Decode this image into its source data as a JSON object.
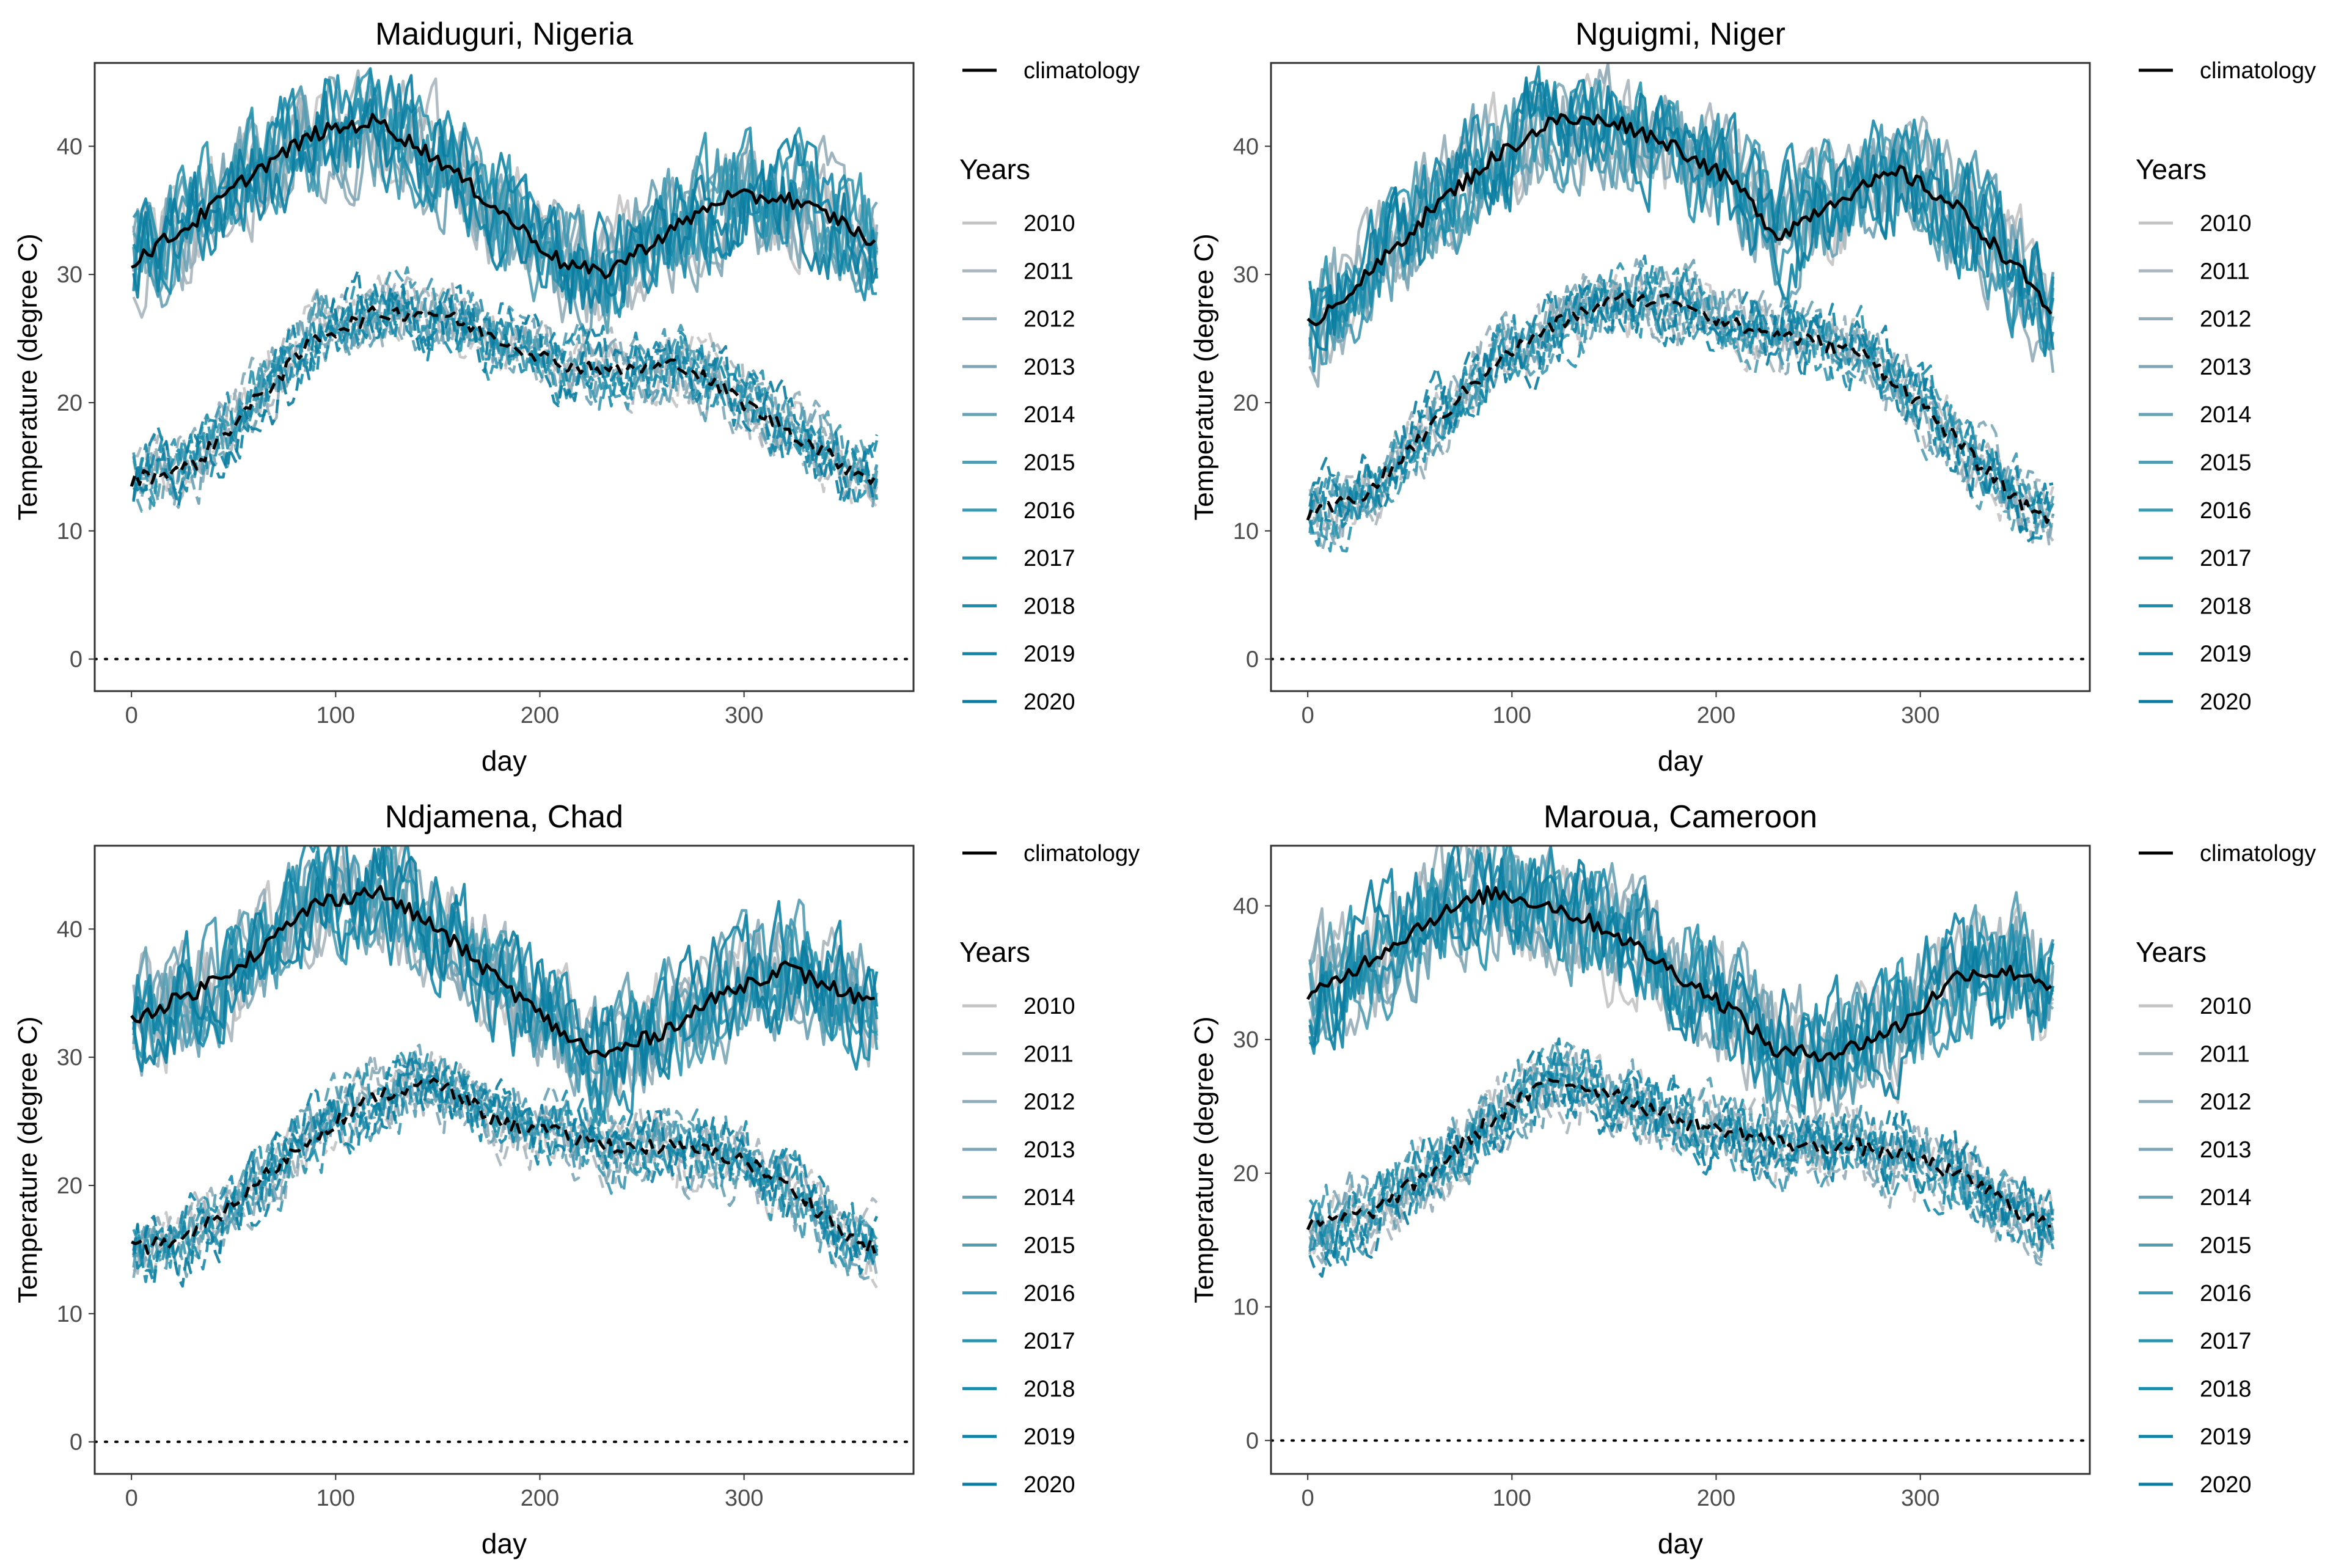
{
  "figure": {
    "legend_climatology_label": "climatology",
    "legend_years_title": "Years",
    "years": [
      "2010",
      "2011",
      "2012",
      "2013",
      "2014",
      "2015",
      "2016",
      "2017",
      "2018",
      "2019",
      "2020"
    ],
    "year_colors": [
      "#c4c4c4",
      "#a8b6bd",
      "#93adb8",
      "#7ea6b6",
      "#69a1b4",
      "#539db3",
      "#3e98b1",
      "#2993ae",
      "#1a8bab",
      "#0f84a6",
      "#0a7ca0"
    ],
    "climatology_color": "#000000",
    "zero_line_style": "dotted"
  },
  "chart_data": [
    {
      "type": "line",
      "title": "Maiduguri, Nigeria",
      "xlabel": "day",
      "ylabel": "Temperature (degree C)",
      "xlim": [
        -18,
        383
      ],
      "ylim": [
        -2.5,
        46.5
      ],
      "x_ticks": [
        0,
        100,
        200,
        300
      ],
      "y_ticks": [
        0,
        10,
        20,
        30,
        40
      ],
      "grid": false,
      "legend_position": "right",
      "series": [
        {
          "name": "climatology",
          "style": "solid",
          "x": [
            0,
            30,
            60,
            90,
            120,
            150,
            180,
            210,
            230,
            260,
            290,
            320,
            350,
            365
          ],
          "y": [
            31,
            34,
            38,
            41,
            42,
            39,
            35,
            31,
            30,
            33,
            36,
            36,
            34,
            32
          ]
        },
        {
          "name": "climatology",
          "style": "dashed",
          "x": [
            0,
            30,
            60,
            90,
            120,
            150,
            180,
            210,
            240,
            270,
            300,
            330,
            350,
            365
          ],
          "y": [
            14,
            15,
            20,
            25,
            27,
            27,
            25,
            23,
            22.5,
            23,
            20,
            17,
            15,
            14
          ]
        }
      ],
      "zero_line": 0
    },
    {
      "type": "line",
      "title": "Nguigmi, Niger",
      "xlabel": "day",
      "ylabel": "Temperature (degree C)",
      "xlim": [
        -18,
        383
      ],
      "ylim": [
        -2.5,
        46.5
      ],
      "x_ticks": [
        0,
        100,
        200,
        300
      ],
      "y_ticks": [
        0,
        10,
        20,
        30,
        40
      ],
      "grid": false,
      "legend_position": "right",
      "series": [
        {
          "name": "climatology",
          "style": "solid",
          "x": [
            0,
            30,
            60,
            90,
            120,
            150,
            180,
            210,
            230,
            260,
            290,
            320,
            350,
            365
          ],
          "y": [
            26,
            30,
            35,
            39,
            42,
            42,
            40,
            37,
            33,
            36,
            38,
            35,
            30,
            27
          ]
        },
        {
          "name": "climatology",
          "style": "dashed",
          "x": [
            0,
            30,
            60,
            90,
            120,
            150,
            180,
            210,
            240,
            270,
            300,
            330,
            350,
            365
          ],
          "y": [
            11,
            13,
            18,
            23,
            26,
            28,
            28,
            26,
            25,
            24,
            20,
            15,
            12,
            11
          ]
        }
      ],
      "zero_line": 0
    },
    {
      "type": "line",
      "title": "Ndjamena, Chad",
      "xlabel": "day",
      "ylabel": "Temperature (degree C)",
      "xlim": [
        -18,
        383
      ],
      "ylim": [
        -2.5,
        46.5
      ],
      "x_ticks": [
        0,
        100,
        200,
        300
      ],
      "y_ticks": [
        0,
        10,
        20,
        30,
        40
      ],
      "grid": false,
      "legend_position": "right",
      "series": [
        {
          "name": "climatology",
          "style": "solid",
          "x": [
            0,
            30,
            60,
            90,
            120,
            150,
            180,
            210,
            230,
            260,
            290,
            320,
            350,
            365
          ],
          "y": [
            33,
            35,
            38,
            42,
            43,
            40,
            36,
            32,
            30,
            32,
            35,
            37,
            35,
            34
          ]
        },
        {
          "name": "climatology",
          "style": "dashed",
          "x": [
            0,
            30,
            60,
            90,
            120,
            150,
            180,
            210,
            240,
            270,
            300,
            330,
            350,
            365
          ],
          "y": [
            15,
            16,
            20,
            24,
            27,
            28,
            25,
            24,
            23,
            23,
            22,
            19,
            16,
            15
          ]
        }
      ],
      "zero_line": 0
    },
    {
      "type": "line",
      "title": "Maroua, Cameroon",
      "xlabel": "day",
      "ylabel": "Temperature (degree C)",
      "xlim": [
        -18,
        383
      ],
      "ylim": [
        -2.5,
        44.5
      ],
      "x_ticks": [
        0,
        100,
        200,
        300
      ],
      "y_ticks": [
        0,
        10,
        20,
        30,
        40
      ],
      "grid": false,
      "legend_position": "right",
      "series": [
        {
          "name": "climatology",
          "style": "solid",
          "x": [
            0,
            30,
            60,
            90,
            120,
            150,
            180,
            210,
            230,
            260,
            290,
            320,
            350,
            365
          ],
          "y": [
            33,
            36,
            39,
            41,
            40,
            38,
            35,
            32,
            29,
            29,
            31,
            35,
            35,
            34
          ]
        },
        {
          "name": "climatology",
          "style": "dashed",
          "x": [
            0,
            30,
            60,
            90,
            120,
            150,
            180,
            210,
            240,
            270,
            300,
            330,
            350,
            365
          ],
          "y": [
            16,
            17,
            20,
            24,
            27,
            26,
            24,
            23,
            22,
            22,
            21,
            19,
            17,
            16
          ]
        }
      ],
      "zero_line": 0
    }
  ]
}
